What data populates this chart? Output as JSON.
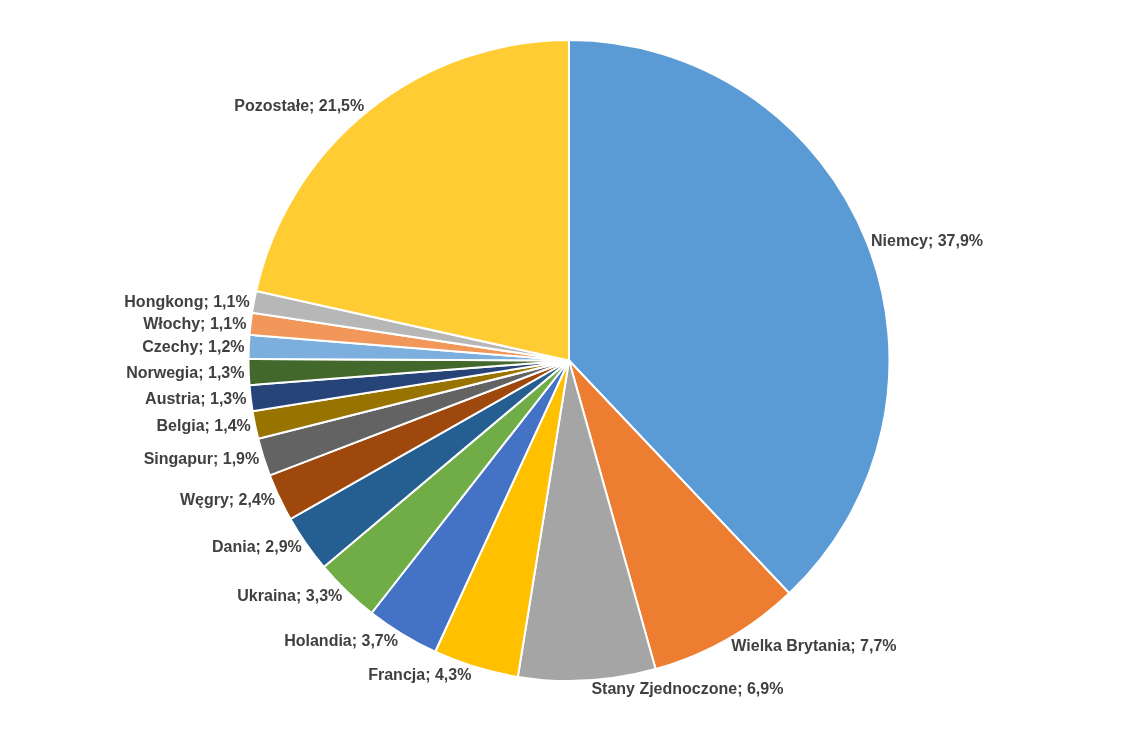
{
  "chart_data": {
    "type": "pie",
    "categories": [
      "Niemcy",
      "Wielka Brytania",
      "Stany Zjednoczone",
      "Francja",
      "Holandia",
      "Ukraina",
      "Dania",
      "Węgry",
      "Singapur",
      "Belgia",
      "Austria",
      "Norwegia",
      "Czechy",
      "Włochy",
      "Hongkong",
      "Pozostałe"
    ],
    "values": [
      37.9,
      7.7,
      6.9,
      4.3,
      3.7,
      3.3,
      2.9,
      2.4,
      1.9,
      1.4,
      1.3,
      1.3,
      1.2,
      1.1,
      1.1,
      21.5
    ],
    "value_labels": [
      "37,9%",
      "7,7%",
      "6,9%",
      "4,3%",
      "3,7%",
      "3,3%",
      "2,9%",
      "2,4%",
      "1,9%",
      "1,4%",
      "1,3%",
      "1,3%",
      "1,2%",
      "1,1%",
      "1,1%",
      "21,5%"
    ],
    "colors": [
      "#5b9bd5",
      "#ed7d31",
      "#a5a5a5",
      "#ffc000",
      "#4472c4",
      "#70ad47",
      "#255e91",
      "#9e480e",
      "#636363",
      "#997300",
      "#264478",
      "#43682b",
      "#7cafdd",
      "#f1975a",
      "#b7b7b7",
      "#ffcd33"
    ]
  }
}
